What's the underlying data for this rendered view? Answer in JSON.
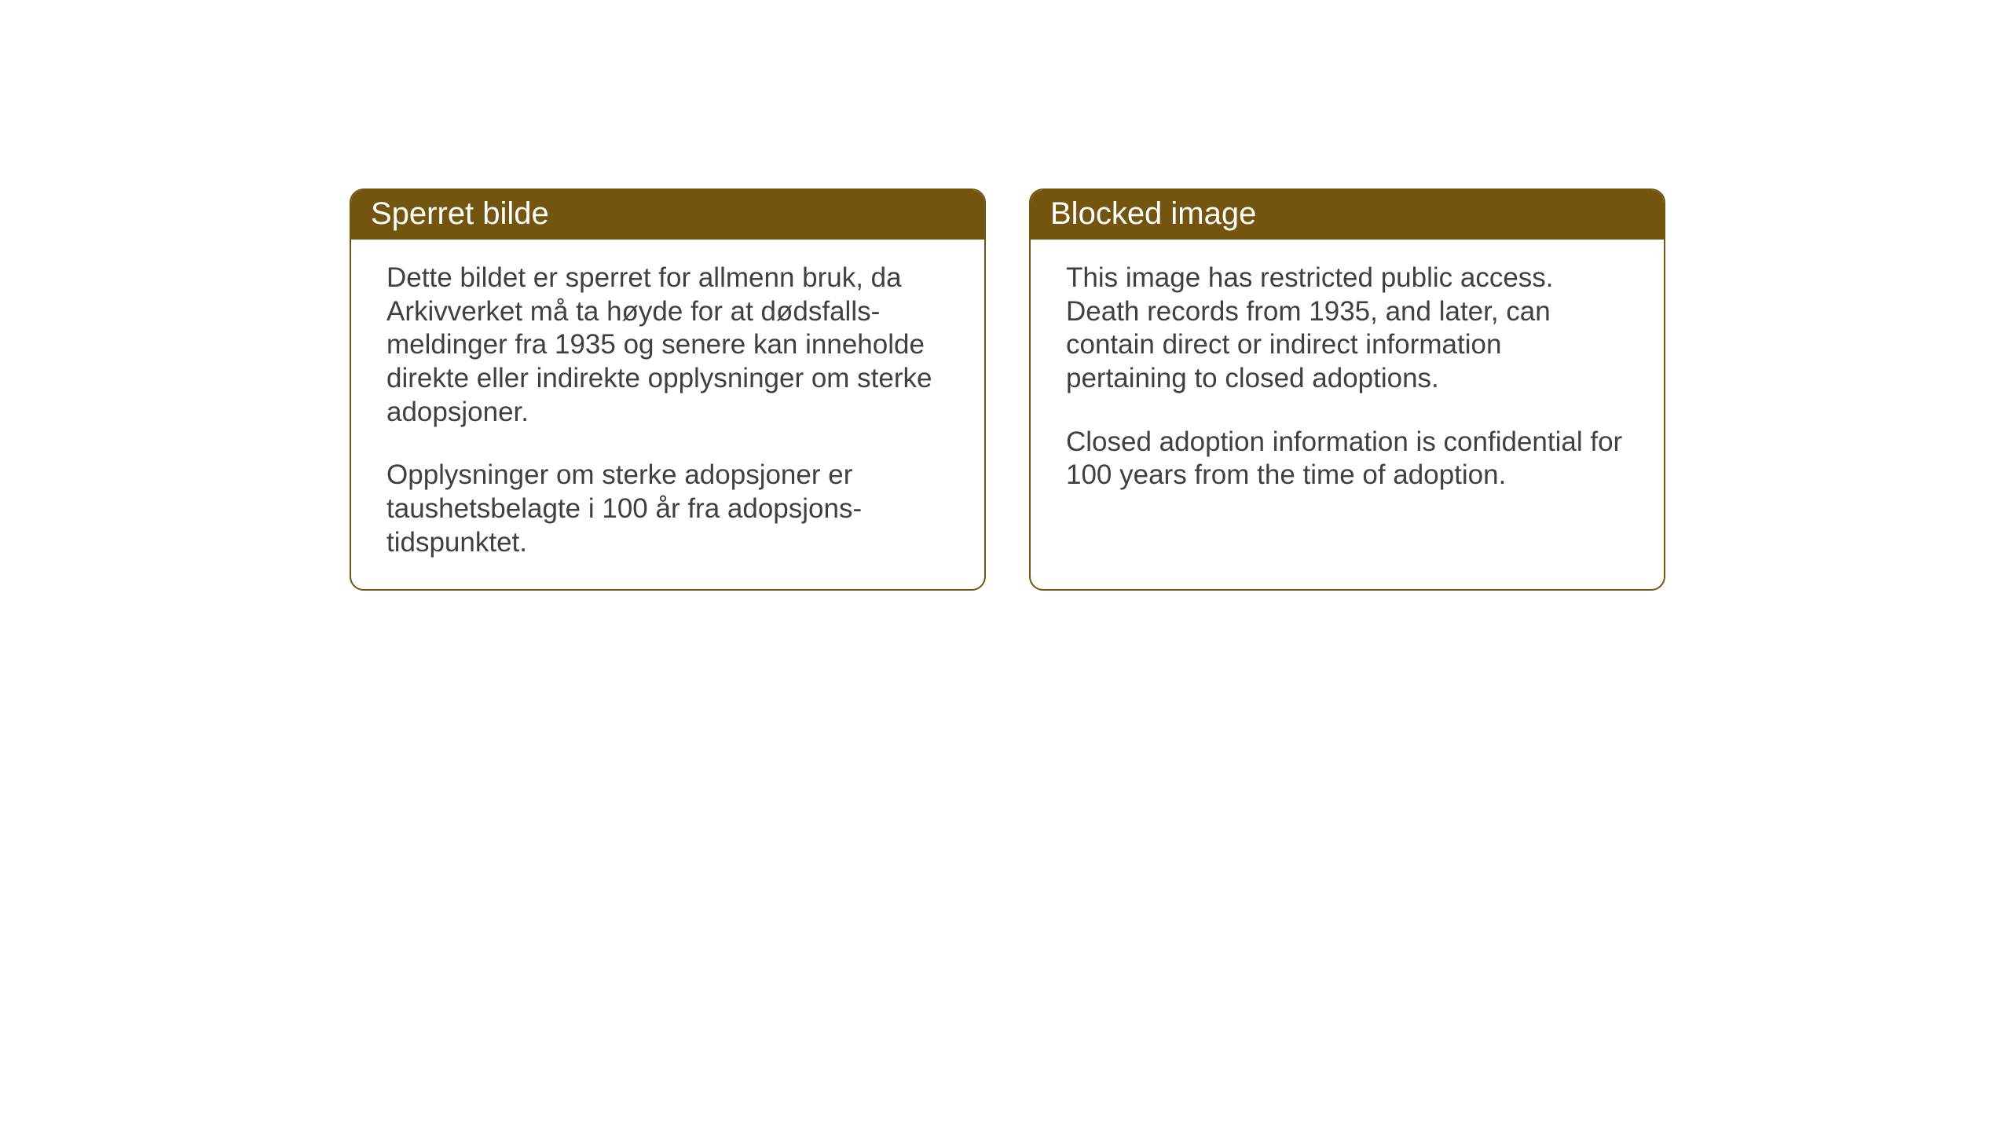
{
  "cards": {
    "norwegian": {
      "title": "Sperret bilde",
      "paragraph1": "Dette bildet er sperret for allmenn bruk, da Arkivverket må ta høyde for at dødsfalls-meldinger fra 1935 og senere kan inneholde direkte eller indirekte opplysninger om sterke adopsjoner.",
      "paragraph2": "Opplysninger om sterke adopsjoner er taushetsbelagte i 100 år fra adopsjons-tidspunktet."
    },
    "english": {
      "title": "Blocked image",
      "paragraph1": "This image has restricted public access. Death records from 1935, and later, can contain direct or indirect information pertaining to closed adoptions.",
      "paragraph2": "Closed adoption information is confidential for 100 years from the time of adoption."
    }
  },
  "styling": {
    "header_background_color": "#735510",
    "header_text_color": "#ffffff",
    "border_color": "#735510",
    "body_text_color": "#404040",
    "page_background_color": "#ffffff",
    "title_fontsize": 40,
    "body_fontsize": 35,
    "border_radius": 18,
    "border_width": 2
  }
}
